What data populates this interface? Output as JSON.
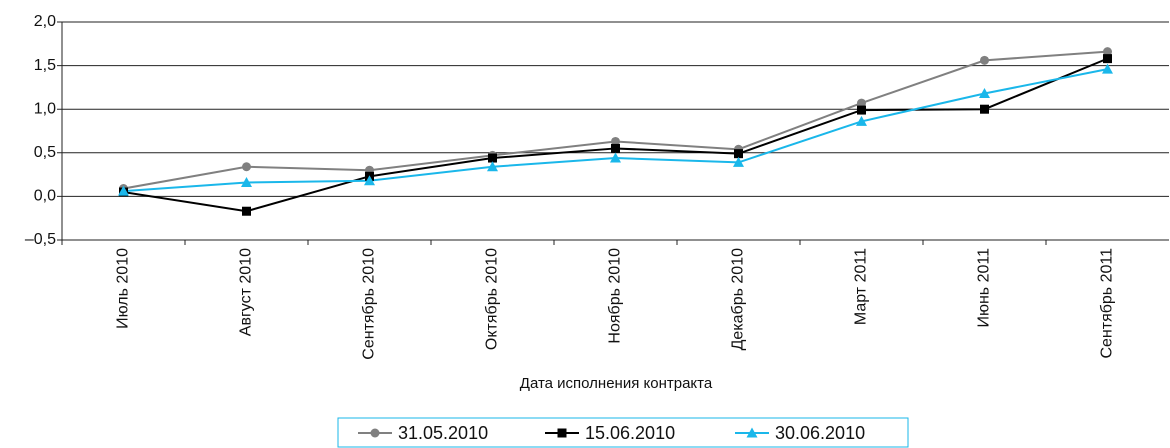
{
  "chart_data": {
    "type": "line",
    "x_label": "Дата исполнения контракта",
    "categories": [
      "Июль 2010",
      "Август 2010",
      "Сентябрь 2010",
      "Октябрь 2010",
      "Ноябрь 2010",
      "Декабрь 2010",
      "Март 2011",
      "Июнь 2011",
      "Сентябрь 2011"
    ],
    "series": [
      {
        "name": "31.05.2010",
        "color": "#808080",
        "marker": "circle",
        "values": [
          0.09,
          0.34,
          0.3,
          0.47,
          0.63,
          0.54,
          1.07,
          1.56,
          1.66
        ]
      },
      {
        "name": "15.06.2010",
        "color": "#000000",
        "marker": "square",
        "values": [
          0.05,
          -0.17,
          0.23,
          0.44,
          0.55,
          0.49,
          0.99,
          1.0,
          1.58
        ]
      },
      {
        "name": "30.06.2010",
        "color": "#1ab7ea",
        "marker": "triangle",
        "values": [
          0.06,
          0.16,
          0.18,
          0.34,
          0.44,
          0.39,
          0.86,
          1.18,
          1.46
        ]
      }
    ],
    "ylim": [
      -0.5,
      2.0
    ],
    "yticks": [
      {
        "value": -0.5,
        "label": "–0,5"
      },
      {
        "value": 0,
        "label": "0,0"
      },
      {
        "value": 0.5,
        "label": "0,5"
      },
      {
        "value": 1.0,
        "label": "1,0"
      },
      {
        "value": 1.5,
        "label": "1,5"
      },
      {
        "value": 2.0,
        "label": "2,0"
      }
    ],
    "grid": true,
    "legend": "bottom"
  }
}
